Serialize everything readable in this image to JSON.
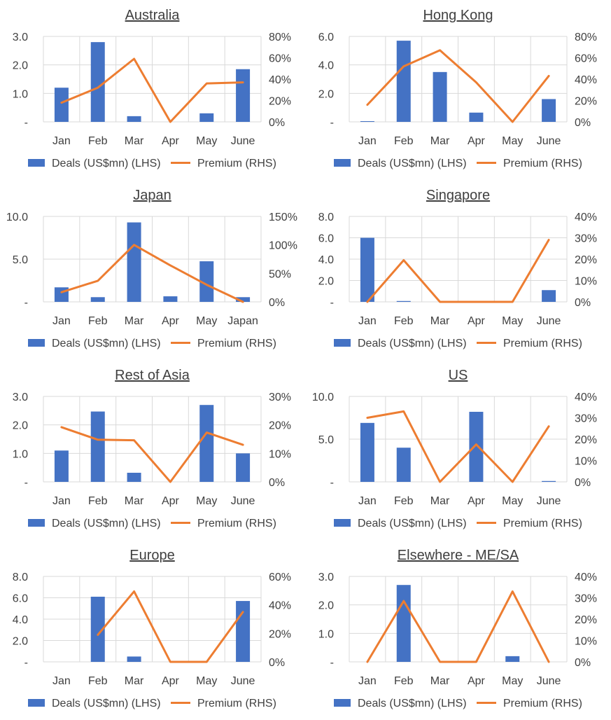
{
  "colors": {
    "bar": "#4472C4",
    "line": "#ED7D31",
    "grid": "#D9D9D9",
    "text": "#404040"
  },
  "legend": {
    "bar_label": "Deals (US$mn) (LHS)",
    "line_label": "Premium (RHS)"
  },
  "chart_data": [
    {
      "type": "bar",
      "title": "Australia",
      "categories": [
        "Jan",
        "Feb",
        "Mar",
        "Apr",
        "May",
        "June"
      ],
      "series": [
        {
          "name": "Deals (US$mn) (LHS)",
          "axis": "left",
          "type": "bar",
          "values": [
            1.2,
            2.8,
            0.2,
            0,
            0.3,
            1.85
          ]
        },
        {
          "name": "Premium (RHS)",
          "axis": "right",
          "type": "line",
          "values": [
            18,
            32,
            59,
            0,
            36,
            37
          ]
        }
      ],
      "y_left": {
        "ticks": [
          0,
          1,
          2,
          3
        ],
        "tick_labels": [
          "-",
          "1.0",
          "2.0",
          "3.0"
        ],
        "ylim": [
          0,
          3
        ]
      },
      "y_right": {
        "ticks": [
          0,
          20,
          40,
          60,
          80
        ],
        "tick_labels": [
          "0%",
          "20%",
          "40%",
          "60%",
          "80%"
        ],
        "ylim": [
          0,
          80
        ]
      },
      "grid": true,
      "legend_position": "bottom"
    },
    {
      "type": "bar",
      "title": "Hong Kong",
      "categories": [
        "Jan",
        "Feb",
        "Mar",
        "Apr",
        "May",
        "June"
      ],
      "series": [
        {
          "name": "Deals (US$mn) (LHS)",
          "axis": "left",
          "type": "bar",
          "values": [
            0.05,
            5.7,
            3.5,
            0.65,
            0,
            1.6
          ]
        },
        {
          "name": "Premium (RHS)",
          "axis": "right",
          "type": "line",
          "values": [
            16,
            52,
            67,
            37,
            0,
            43
          ]
        }
      ],
      "y_left": {
        "ticks": [
          0,
          2,
          4,
          6
        ],
        "tick_labels": [
          "-",
          "2.0",
          "4.0",
          "6.0"
        ],
        "ylim": [
          0,
          6
        ]
      },
      "y_right": {
        "ticks": [
          0,
          20,
          40,
          60,
          80
        ],
        "tick_labels": [
          "0%",
          "20%",
          "40%",
          "60%",
          "80%"
        ],
        "ylim": [
          0,
          80
        ]
      },
      "grid": true,
      "legend_position": "bottom"
    },
    {
      "type": "bar",
      "title": "Japan",
      "categories": [
        "Jan",
        "Feb",
        "Mar",
        "Apr",
        "May",
        "Japan"
      ],
      "series": [
        {
          "name": "Deals (US$mn) (LHS)",
          "axis": "left",
          "type": "bar",
          "values": [
            1.7,
            0.55,
            9.3,
            0.65,
            4.75,
            0.55
          ]
        },
        {
          "name": "Premium (RHS)",
          "axis": "right",
          "type": "line",
          "values": [
            17,
            37,
            100,
            64,
            30,
            0
          ]
        }
      ],
      "y_left": {
        "ticks": [
          0,
          5,
          10
        ],
        "tick_labels": [
          "-",
          "5.0",
          "10.0"
        ],
        "ylim": [
          0,
          10
        ]
      },
      "y_right": {
        "ticks": [
          0,
          50,
          100,
          150
        ],
        "tick_labels": [
          "0%",
          "50%",
          "100%",
          "150%"
        ],
        "ylim": [
          0,
          150
        ]
      },
      "grid": true,
      "legend_position": "bottom"
    },
    {
      "type": "bar",
      "title": "Singapore",
      "categories": [
        "Jan",
        "Feb",
        "Mar",
        "Apr",
        "May",
        "June"
      ],
      "series": [
        {
          "name": "Deals (US$mn) (LHS)",
          "axis": "left",
          "type": "bar",
          "values": [
            6.0,
            0.08,
            0,
            0,
            0,
            1.1
          ]
        },
        {
          "name": "Premium (RHS)",
          "axis": "right",
          "type": "line",
          "values": [
            0,
            19.5,
            0,
            0,
            0,
            29
          ]
        }
      ],
      "y_left": {
        "ticks": [
          0,
          2,
          4,
          6,
          8
        ],
        "tick_labels": [
          "-",
          "2.0",
          "4.0",
          "6.0",
          "8.0"
        ],
        "ylim": [
          0,
          8
        ]
      },
      "y_right": {
        "ticks": [
          0,
          10,
          20,
          30,
          40
        ],
        "tick_labels": [
          "0%",
          "10%",
          "20%",
          "30%",
          "40%"
        ],
        "ylim": [
          0,
          40
        ]
      },
      "grid": true,
      "legend_position": "bottom"
    },
    {
      "type": "bar",
      "title": "Rest of Asia",
      "categories": [
        "Jan",
        "Feb",
        "Mar",
        "Apr",
        "May",
        "June"
      ],
      "series": [
        {
          "name": "Deals (US$mn) (LHS)",
          "axis": "left",
          "type": "bar",
          "values": [
            1.1,
            2.47,
            0.32,
            0,
            2.7,
            1.0
          ]
        },
        {
          "name": "Premium (RHS)",
          "axis": "right",
          "type": "line",
          "values": [
            19.2,
            14.8,
            14.6,
            0,
            17.3,
            13
          ]
        }
      ],
      "y_left": {
        "ticks": [
          0,
          1,
          2,
          3
        ],
        "tick_labels": [
          "-",
          "1.0",
          "2.0",
          "3.0"
        ],
        "ylim": [
          0,
          3
        ]
      },
      "y_right": {
        "ticks": [
          0,
          10,
          20,
          30
        ],
        "tick_labels": [
          "0%",
          "10%",
          "20%",
          "30%"
        ],
        "ylim": [
          0,
          30
        ]
      },
      "grid": true,
      "legend_position": "bottom"
    },
    {
      "type": "bar",
      "title": "US",
      "categories": [
        "Jan",
        "Feb",
        "Mar",
        "Apr",
        "May",
        "June"
      ],
      "series": [
        {
          "name": "Deals (US$mn) (LHS)",
          "axis": "left",
          "type": "bar",
          "values": [
            6.9,
            4.0,
            0,
            8.2,
            0,
            0.1
          ]
        },
        {
          "name": "Premium (RHS)",
          "axis": "right",
          "type": "line",
          "values": [
            30,
            33,
            0,
            17.5,
            0,
            26
          ]
        }
      ],
      "y_left": {
        "ticks": [
          0,
          5,
          10
        ],
        "tick_labels": [
          "-",
          "5.0",
          "10.0"
        ],
        "ylim": [
          0,
          10
        ]
      },
      "y_right": {
        "ticks": [
          0,
          10,
          20,
          30,
          40
        ],
        "tick_labels": [
          "0%",
          "10%",
          "20%",
          "30%",
          "40%"
        ],
        "ylim": [
          0,
          40
        ]
      },
      "grid": true,
      "legend_position": "bottom"
    },
    {
      "type": "bar",
      "title": "Europe",
      "categories": [
        "Jan",
        "Feb",
        "Mar",
        "Apr",
        "May",
        "June"
      ],
      "series": [
        {
          "name": "Deals (US$mn) (LHS)",
          "axis": "left",
          "type": "bar",
          "values": [
            0,
            6.1,
            0.5,
            0,
            0,
            5.7
          ]
        },
        {
          "name": "Premium (RHS)",
          "axis": "right",
          "type": "line",
          "values": [
            null,
            19,
            49.5,
            0,
            0,
            35
          ]
        }
      ],
      "y_left": {
        "ticks": [
          0,
          2,
          4,
          6,
          8
        ],
        "tick_labels": [
          "-",
          "2.0",
          "4.0",
          "6.0",
          "8.0"
        ],
        "ylim": [
          0,
          8
        ]
      },
      "y_right": {
        "ticks": [
          0,
          20,
          40,
          60
        ],
        "tick_labels": [
          "0%",
          "20%",
          "40%",
          "60%"
        ],
        "ylim": [
          0,
          60
        ]
      },
      "grid": true,
      "legend_position": "bottom"
    },
    {
      "type": "bar",
      "title": "Elsewhere - ME/SA",
      "categories": [
        "Jan",
        "Feb",
        "Mar",
        "Apr",
        "May",
        "June"
      ],
      "series": [
        {
          "name": "Deals (US$mn) (LHS)",
          "axis": "left",
          "type": "bar",
          "values": [
            0,
            2.7,
            0,
            0,
            0.2,
            0
          ]
        },
        {
          "name": "Premium (RHS)",
          "axis": "right",
          "type": "line",
          "values": [
            0,
            28.5,
            0,
            0,
            33,
            0
          ]
        }
      ],
      "y_left": {
        "ticks": [
          0,
          1,
          2,
          3
        ],
        "tick_labels": [
          "-",
          "1.0",
          "2.0",
          "3.0"
        ],
        "ylim": [
          0,
          3
        ]
      },
      "y_right": {
        "ticks": [
          0,
          10,
          20,
          30,
          40
        ],
        "tick_labels": [
          "0%",
          "10%",
          "20%",
          "30%",
          "40%"
        ],
        "ylim": [
          0,
          40
        ]
      },
      "grid": true,
      "legend_position": "bottom"
    }
  ]
}
